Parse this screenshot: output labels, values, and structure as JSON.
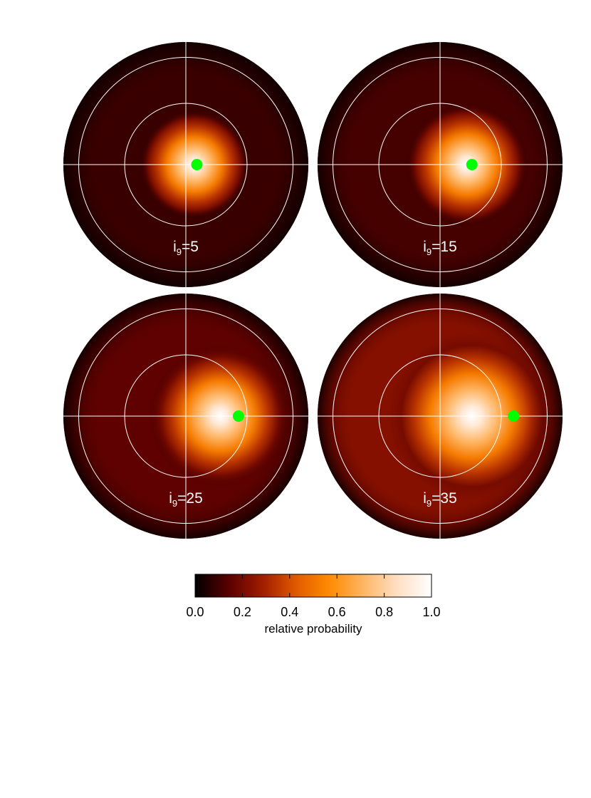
{
  "chart_data": {
    "type": "heatmap",
    "colormap_stops": [
      "#000000",
      "#5a0000",
      "#a01b00",
      "#e25c00",
      "#ff8c00",
      "#ffb666",
      "#ffe0c4",
      "#ffffff"
    ],
    "marker_color": "#00ff00",
    "grid": true,
    "panels": [
      {
        "label_base": "i",
        "label_sub": "9",
        "label_rest": "=5",
        "inclination": 5,
        "marker": {
          "offset": 0.09
        },
        "peak": {
          "offset": 0.07,
          "width": 0.36
        },
        "background": 0.06,
        "peak_value": 1.0
      },
      {
        "label_base": "i",
        "label_sub": "9",
        "label_rest": "=15",
        "inclination": 15,
        "marker": {
          "offset": 0.26
        },
        "peak": {
          "offset": 0.22,
          "width": 0.4
        },
        "background": 0.08,
        "peak_value": 1.0
      },
      {
        "label_base": "i",
        "label_sub": "9",
        "label_rest": "=25",
        "inclination": 25,
        "marker": {
          "offset": 0.43
        },
        "peak": {
          "offset": 0.28,
          "width": 0.46
        },
        "background": 0.12,
        "peak_value": 1.0
      },
      {
        "label_base": "i",
        "label_sub": "9",
        "label_rest": "=35",
        "inclination": 35,
        "marker": {
          "offset": 0.6
        },
        "peak": {
          "offset": 0.26,
          "width": 0.55
        },
        "background": 0.2,
        "peak_value": 1.0
      }
    ],
    "colorbar": {
      "range": [
        0.0,
        1.0
      ],
      "ticks": [
        "0.0",
        "0.2",
        "0.4",
        "0.6",
        "0.8",
        "1.0"
      ],
      "label": "relative probability"
    }
  }
}
